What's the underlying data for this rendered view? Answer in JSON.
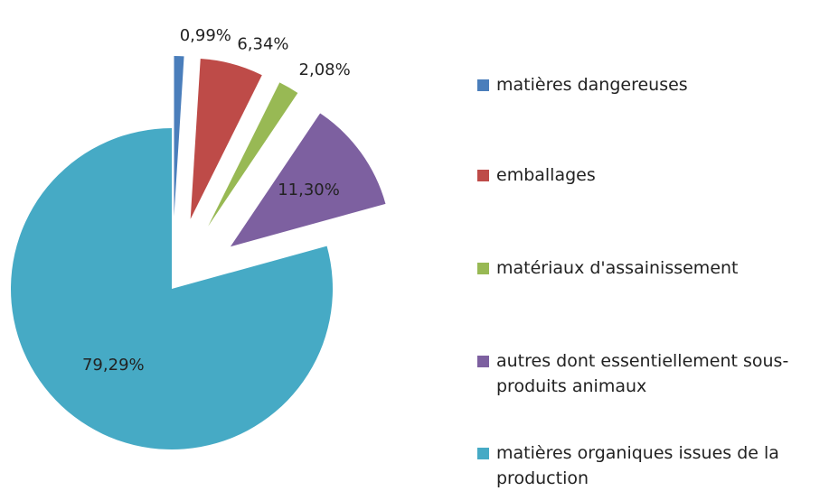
{
  "chart_data": {
    "type": "pie",
    "categories": [
      "matières dangereuses",
      "emballages",
      "matériaux d'assainissement",
      "autres dont essentiellement sous-produits animaux",
      "matières organiques issues de la production"
    ],
    "values": [
      0.99,
      6.34,
      2.08,
      11.3,
      79.29
    ],
    "value_labels": [
      "0,99%",
      "6,34%",
      "2,08%",
      "11,30%",
      "79,29%"
    ],
    "colors": [
      "#4a7ebb",
      "#be4b48",
      "#98b954",
      "#7d60a0",
      "#46aac5"
    ]
  }
}
